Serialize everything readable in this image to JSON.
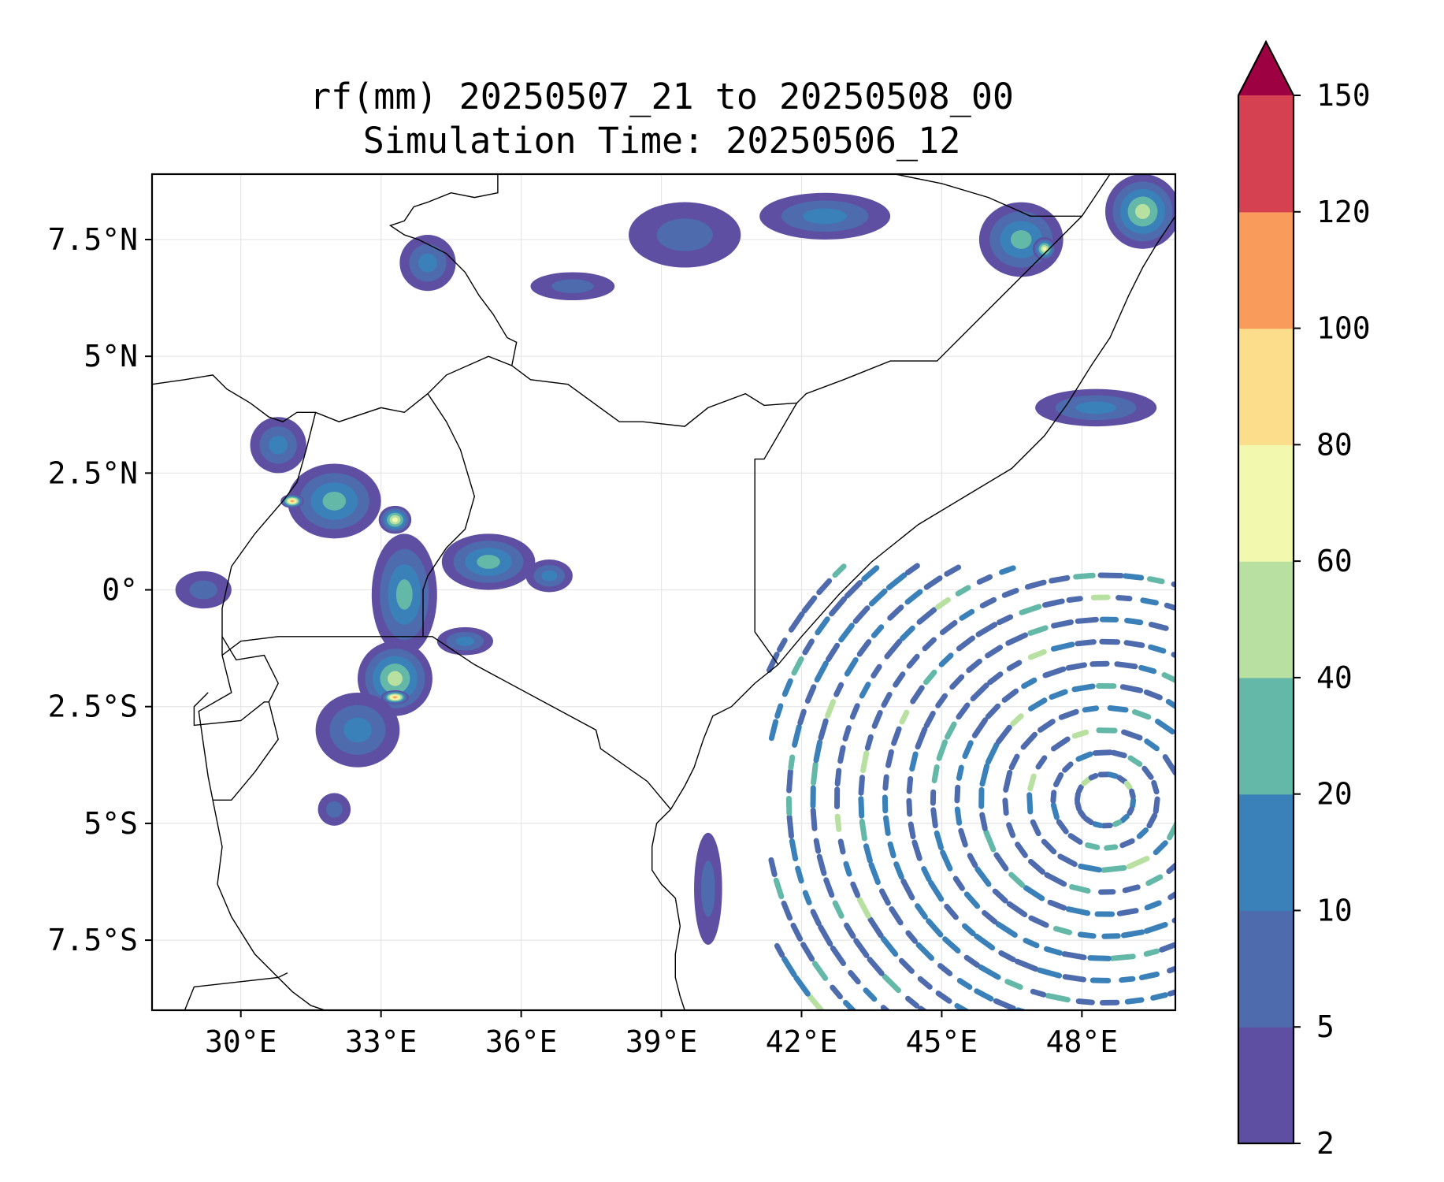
{
  "title": {
    "line1": "rf(mm) 20250507_21 to 20250508_00",
    "line2": "Simulation Time: 20250506_12"
  },
  "map": {
    "lon_range": [
      28.1,
      50.0
    ],
    "lat_range": [
      -9.0,
      8.9
    ],
    "lon_ticks": [
      {
        "value": 30,
        "label": "30°E"
      },
      {
        "value": 33,
        "label": "33°E"
      },
      {
        "value": 36,
        "label": "36°E"
      },
      {
        "value": 39,
        "label": "39°E"
      },
      {
        "value": 42,
        "label": "42°E"
      },
      {
        "value": 45,
        "label": "45°E"
      },
      {
        "value": 48,
        "label": "48°E"
      }
    ],
    "lat_ticks": [
      {
        "value": 7.5,
        "label": "7.5°N"
      },
      {
        "value": 5,
        "label": "5°N"
      },
      {
        "value": 2.5,
        "label": "2.5°N"
      },
      {
        "value": 0,
        "label": "0°"
      },
      {
        "value": -2.5,
        "label": "2.5°S"
      },
      {
        "value": -5,
        "label": "5°S"
      },
      {
        "value": -7.5,
        "label": "7.5°S"
      }
    ],
    "grid": true,
    "borders": [
      [
        [
          28.1,
          4.4
        ],
        [
          28.8,
          4.5
        ],
        [
          29.4,
          4.6
        ],
        [
          29.7,
          4.3
        ],
        [
          30.2,
          4.0
        ],
        [
          30.6,
          3.7
        ],
        [
          30.9,
          3.6
        ],
        [
          31.2,
          3.8
        ],
        [
          31.6,
          3.8
        ],
        [
          32.1,
          3.6
        ],
        [
          33.0,
          3.9
        ],
        [
          33.5,
          3.8
        ],
        [
          34.0,
          4.2
        ],
        [
          34.4,
          4.6
        ],
        [
          35.3,
          5.0
        ],
        [
          35.8,
          4.8
        ],
        [
          36.2,
          4.5
        ],
        [
          37.0,
          4.4
        ],
        [
          38.1,
          3.6
        ],
        [
          38.6,
          3.6
        ],
        [
          39.5,
          3.5
        ],
        [
          40.0,
          3.9
        ],
        [
          40.8,
          4.2
        ],
        [
          41.2,
          3.95
        ],
        [
          41.9,
          4.0
        ],
        [
          42.1,
          4.2
        ],
        [
          42.9,
          4.5
        ],
        [
          43.9,
          4.9
        ],
        [
          44.9,
          4.9
        ],
        [
          46.0,
          6.0
        ],
        [
          47.0,
          7.0
        ],
        [
          48.0,
          8.0
        ],
        [
          48.6,
          8.9
        ]
      ],
      [
        [
          41.9,
          4.0
        ],
        [
          41.2,
          2.8
        ],
        [
          41.0,
          2.8
        ],
        [
          41.0,
          -0.9
        ],
        [
          41.5,
          -1.6
        ]
      ],
      [
        [
          31.6,
          3.8
        ],
        [
          31.4,
          3.0
        ],
        [
          31.2,
          2.3
        ],
        [
          30.9,
          1.9
        ],
        [
          30.3,
          1.2
        ],
        [
          29.8,
          0.5
        ],
        [
          29.6,
          -0.4
        ],
        [
          29.6,
          -1.0
        ],
        [
          29.6,
          -1.4
        ],
        [
          29.8,
          -2.2
        ],
        [
          29.1,
          -2.6
        ],
        [
          29.2,
          -3.3
        ],
        [
          29.3,
          -4.0
        ],
        [
          29.4,
          -4.5
        ],
        [
          29.6,
          -5.5
        ],
        [
          29.5,
          -6.3
        ],
        [
          29.8,
          -7.0
        ],
        [
          30.3,
          -7.8
        ],
        [
          30.7,
          -8.2
        ],
        [
          31.1,
          -8.6
        ],
        [
          31.5,
          -8.9
        ],
        [
          31.8,
          -9.0
        ]
      ],
      [
        [
          29.6,
          -1.4
        ],
        [
          30.0,
          -1.1
        ],
        [
          30.8,
          -1.0
        ],
        [
          33.9,
          -1.0
        ],
        [
          34.1,
          -1.0
        ],
        [
          35.0,
          -1.6
        ],
        [
          37.6,
          -3.0
        ],
        [
          37.7,
          -3.4
        ],
        [
          38.7,
          -4.1
        ],
        [
          39.2,
          -4.7
        ]
      ],
      [
        [
          33.9,
          -1.0
        ],
        [
          33.9,
          0.0
        ],
        [
          34.0,
          0.3
        ],
        [
          34.4,
          0.9
        ],
        [
          34.8,
          1.3
        ],
        [
          35.0,
          2.0
        ],
        [
          34.7,
          3.0
        ],
        [
          34.4,
          3.6
        ],
        [
          34.0,
          4.2
        ]
      ],
      [
        [
          29.6,
          -1.0
        ],
        [
          29.9,
          -1.5
        ],
        [
          30.5,
          -1.4
        ],
        [
          30.8,
          -2.0
        ],
        [
          30.6,
          -2.4
        ],
        [
          30.5,
          -2.4
        ],
        [
          30.0,
          -2.8
        ],
        [
          29.0,
          -2.9
        ],
        [
          29.0,
          -2.5
        ],
        [
          29.3,
          -2.2
        ]
      ],
      [
        [
          30.6,
          -2.4
        ],
        [
          30.8,
          -3.2
        ],
        [
          30.3,
          -3.9
        ],
        [
          29.8,
          -4.5
        ],
        [
          29.4,
          -4.5
        ]
      ],
      [
        [
          35.5,
          8.9
        ],
        [
          35.5,
          8.5
        ],
        [
          35.0,
          8.4
        ],
        [
          34.5,
          8.5
        ],
        [
          34.0,
          8.3
        ],
        [
          33.7,
          8.2
        ],
        [
          33.5,
          7.9
        ],
        [
          33.2,
          7.8
        ],
        [
          33.5,
          7.6
        ],
        [
          33.8,
          7.5
        ],
        [
          34.4,
          7.2
        ],
        [
          34.8,
          6.8
        ],
        [
          35.1,
          6.3
        ],
        [
          35.4,
          5.9
        ],
        [
          35.7,
          5.4
        ],
        [
          35.9,
          5.3
        ],
        [
          35.8,
          4.8
        ]
      ],
      [
        [
          44.0,
          8.9
        ],
        [
          45.0,
          8.7
        ],
        [
          46.0,
          8.4
        ],
        [
          46.9,
          8.0
        ],
        [
          48.0,
          8.0
        ]
      ],
      [
        [
          31.0,
          -8.2
        ],
        [
          30.8,
          -8.3
        ],
        [
          29.0,
          -8.5
        ],
        [
          28.8,
          -9.0
        ]
      ]
    ],
    "coast": [
      [
        39.2,
        -4.7
      ],
      [
        39.5,
        -4.2
      ],
      [
        39.7,
        -3.8
      ],
      [
        39.9,
        -3.2
      ],
      [
        40.1,
        -2.7
      ],
      [
        40.5,
        -2.5
      ],
      [
        41.0,
        -2.0
      ],
      [
        41.5,
        -1.6
      ],
      [
        42.0,
        -1.0
      ],
      [
        42.8,
        -0.1
      ],
      [
        43.5,
        0.6
      ],
      [
        44.5,
        1.4
      ],
      [
        45.5,
        2.0
      ],
      [
        46.5,
        2.6
      ],
      [
        47.2,
        3.3
      ],
      [
        47.7,
        4.0
      ],
      [
        48.2,
        4.8
      ],
      [
        48.6,
        5.4
      ],
      [
        49.0,
        6.3
      ],
      [
        49.3,
        6.9
      ],
      [
        49.6,
        7.4
      ],
      [
        49.8,
        7.7
      ],
      [
        50.0,
        8.0
      ]
    ],
    "coast_south": [
      [
        39.2,
        -4.7
      ],
      [
        38.9,
        -5.0
      ],
      [
        38.8,
        -5.5
      ],
      [
        38.8,
        -6.0
      ],
      [
        39.0,
        -6.3
      ],
      [
        39.3,
        -6.6
      ],
      [
        39.4,
        -7.2
      ],
      [
        39.3,
        -7.8
      ],
      [
        39.3,
        -8.3
      ],
      [
        39.4,
        -8.7
      ],
      [
        39.5,
        -9.0
      ]
    ],
    "rain_cells": [
      {
        "lon": 32.0,
        "lat": 1.9,
        "rx": 1.0,
        "ry": 0.8,
        "level": 3
      },
      {
        "lon": 31.1,
        "lat": 1.9,
        "rx": 0.25,
        "ry": 0.15,
        "level": 7
      },
      {
        "lon": 33.3,
        "lat": 1.5,
        "rx": 0.35,
        "ry": 0.3,
        "level": 5
      },
      {
        "lon": 30.8,
        "lat": 3.1,
        "rx": 0.6,
        "ry": 0.6,
        "level": 2
      },
      {
        "lon": 33.5,
        "lat": -0.1,
        "rx": 0.7,
        "ry": 1.3,
        "level": 3
      },
      {
        "lon": 35.3,
        "lat": 0.6,
        "rx": 1.0,
        "ry": 0.6,
        "level": 3
      },
      {
        "lon": 33.3,
        "lat": -1.9,
        "rx": 0.8,
        "ry": 0.8,
        "level": 4
      },
      {
        "lon": 33.3,
        "lat": -2.3,
        "rx": 0.3,
        "ry": 0.15,
        "level": 7
      },
      {
        "lon": 32.5,
        "lat": -3.0,
        "rx": 0.9,
        "ry": 0.8,
        "level": 2
      },
      {
        "lon": 32.0,
        "lat": -4.7,
        "rx": 0.35,
        "ry": 0.35,
        "level": 1
      },
      {
        "lon": 34.0,
        "lat": 7.0,
        "rx": 0.6,
        "ry": 0.6,
        "level": 2
      },
      {
        "lon": 37.1,
        "lat": 6.5,
        "rx": 0.9,
        "ry": 0.3,
        "level": 1
      },
      {
        "lon": 39.5,
        "lat": 7.6,
        "rx": 1.2,
        "ry": 0.7,
        "level": 1
      },
      {
        "lon": 42.5,
        "lat": 8.0,
        "rx": 1.4,
        "ry": 0.5,
        "level": 2
      },
      {
        "lon": 46.7,
        "lat": 7.5,
        "rx": 0.9,
        "ry": 0.8,
        "level": 3
      },
      {
        "lon": 47.2,
        "lat": 7.3,
        "rx": 0.25,
        "ry": 0.25,
        "level": 5
      },
      {
        "lon": 49.3,
        "lat": 8.1,
        "rx": 0.8,
        "ry": 0.8,
        "level": 4
      },
      {
        "lon": 48.3,
        "lat": 3.9,
        "rx": 1.3,
        "ry": 0.4,
        "level": 2
      },
      {
        "lon": 36.6,
        "lat": 0.3,
        "rx": 0.5,
        "ry": 0.35,
        "level": 2
      },
      {
        "lon": 34.8,
        "lat": -1.1,
        "rx": 0.6,
        "ry": 0.3,
        "level": 2
      },
      {
        "lon": 40.0,
        "lat": -6.4,
        "rx": 0.3,
        "ry": 1.2,
        "level": 1
      },
      {
        "lon": 29.2,
        "lat": 0.0,
        "rx": 0.6,
        "ry": 0.4,
        "level": 1
      }
    ],
    "ocean_swirl": {
      "center_lon": 48.5,
      "center_lat": -4.5,
      "rings": 15,
      "min_radius_deg": 0.6,
      "max_radius_deg": 7.8,
      "min_lon": 41.3,
      "max_lon": 50.0,
      "max_lat": 0.6
    }
  },
  "colorbar": {
    "colors": [
      "#5e4fa2",
      "#4e6bae",
      "#3a80b9",
      "#63b8a8",
      "#b8e0a0",
      "#f2f8ad",
      "#fcdd8c",
      "#f99b5b",
      "#d64152"
    ],
    "extend_color": "#9e0142",
    "ticks": [
      "2",
      "5",
      "10",
      "20",
      "40",
      "60",
      "80",
      "100",
      "120",
      "150"
    ]
  }
}
